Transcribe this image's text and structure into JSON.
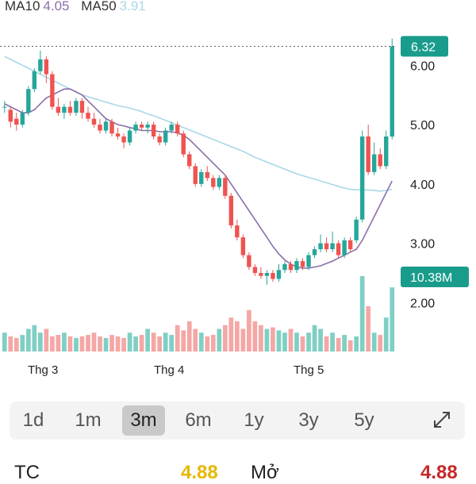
{
  "legend": {
    "ma10_label": "MA10",
    "ma10_value": "4.05",
    "ma50_label": "MA50",
    "ma50_value": "3.91",
    "ma10_color": "#8b6fa8",
    "ma50_color": "#a9d8e6"
  },
  "price_tag": "6.32",
  "volume_tag": "10.38M",
  "y_ticks": [
    "6.00",
    "5.00",
    "4.00",
    "3.00",
    "2.00"
  ],
  "x_labels": [
    "Thg 3",
    "Thg 4",
    "Thg 5"
  ],
  "tabs": [
    "1d",
    "1m",
    "3m",
    "6m",
    "1y",
    "3y",
    "5y"
  ],
  "active_tab": "3m",
  "stats": {
    "tc_label": "TC",
    "tc_value": "4.88",
    "open_label": "Mở",
    "open_value": "4.88"
  },
  "colors": {
    "up": "#26a69a",
    "down": "#ef5350",
    "up_vol": "#7fcfc4",
    "down_vol": "#f4a7a5",
    "tag": "#1a9c8c"
  },
  "chart_data": {
    "type": "candlestick",
    "ylim": [
      1.35,
      6.9
    ],
    "y_ticks": [
      6.0,
      5.0,
      4.0,
      3.0,
      2.0
    ],
    "last_price": 6.32,
    "last_volume": "10.38M",
    "x_labels": [
      {
        "label": "Thg 3",
        "index": 8
      },
      {
        "label": "Thg 4",
        "index": 30
      },
      {
        "label": "Thg 5",
        "index": 55
      }
    ],
    "candles": [
      [
        5.3,
        5.3,
        5.4,
        5.2,
        "up"
      ],
      [
        5.25,
        5.05,
        5.3,
        4.95,
        "down"
      ],
      [
        5.1,
        5.0,
        5.2,
        4.9,
        "down"
      ],
      [
        5.0,
        5.2,
        5.25,
        4.95,
        "up"
      ],
      [
        5.2,
        5.6,
        5.65,
        5.15,
        "up"
      ],
      [
        5.6,
        5.9,
        5.95,
        5.55,
        "up"
      ],
      [
        5.9,
        6.1,
        6.25,
        5.85,
        "up"
      ],
      [
        6.1,
        5.85,
        6.15,
        5.7,
        "down"
      ],
      [
        5.85,
        5.3,
        5.9,
        5.25,
        "down"
      ],
      [
        5.3,
        5.2,
        5.45,
        5.15,
        "down"
      ],
      [
        5.2,
        5.3,
        5.35,
        5.1,
        "up"
      ],
      [
        5.3,
        5.2,
        5.4,
        5.15,
        "down"
      ],
      [
        5.2,
        5.4,
        5.45,
        5.15,
        "up"
      ],
      [
        5.4,
        5.2,
        5.45,
        5.1,
        "down"
      ],
      [
        5.2,
        5.1,
        5.3,
        5.05,
        "down"
      ],
      [
        5.1,
        5.0,
        5.2,
        4.95,
        "down"
      ],
      [
        5.0,
        4.9,
        5.1,
        4.85,
        "down"
      ],
      [
        4.9,
        5.05,
        5.1,
        4.85,
        "up"
      ],
      [
        5.05,
        4.85,
        5.1,
        4.8,
        "down"
      ],
      [
        4.85,
        4.8,
        4.95,
        4.75,
        "down"
      ],
      [
        4.8,
        4.7,
        4.85,
        4.6,
        "down"
      ],
      [
        4.7,
        4.9,
        4.95,
        4.65,
        "up"
      ],
      [
        4.9,
        5.0,
        5.05,
        4.85,
        "up"
      ],
      [
        5.0,
        4.95,
        5.05,
        4.9,
        "down"
      ],
      [
        4.95,
        5.0,
        5.05,
        4.85,
        "up"
      ],
      [
        5.0,
        4.8,
        5.05,
        4.75,
        "down"
      ],
      [
        4.8,
        4.7,
        4.85,
        4.65,
        "down"
      ],
      [
        4.7,
        4.9,
        4.95,
        4.65,
        "up"
      ],
      [
        4.9,
        5.0,
        5.05,
        4.85,
        "up"
      ],
      [
        5.0,
        4.85,
        5.05,
        4.8,
        "down"
      ],
      [
        4.85,
        4.5,
        4.9,
        4.45,
        "down"
      ],
      [
        4.5,
        4.3,
        4.55,
        4.25,
        "down"
      ],
      [
        4.3,
        4.0,
        4.35,
        3.95,
        "down"
      ],
      [
        4.0,
        4.2,
        4.25,
        3.95,
        "up"
      ],
      [
        4.2,
        4.1,
        4.3,
        4.05,
        "down"
      ],
      [
        4.1,
        3.95,
        4.15,
        3.9,
        "down"
      ],
      [
        3.95,
        4.1,
        4.15,
        3.9,
        "up"
      ],
      [
        4.1,
        3.8,
        4.15,
        3.75,
        "down"
      ],
      [
        3.8,
        3.3,
        3.85,
        3.25,
        "down"
      ],
      [
        3.3,
        3.1,
        3.4,
        3.05,
        "down"
      ],
      [
        3.1,
        2.8,
        3.15,
        2.75,
        "down"
      ],
      [
        2.8,
        2.6,
        2.85,
        2.55,
        "down"
      ],
      [
        2.6,
        2.5,
        2.65,
        2.45,
        "down"
      ],
      [
        2.5,
        2.45,
        2.6,
        2.4,
        "down"
      ],
      [
        2.45,
        2.5,
        2.55,
        2.3,
        "up"
      ],
      [
        2.5,
        2.4,
        2.55,
        2.35,
        "down"
      ],
      [
        2.4,
        2.55,
        2.65,
        2.35,
        "up"
      ],
      [
        2.55,
        2.65,
        2.7,
        2.5,
        "up"
      ],
      [
        2.65,
        2.55,
        2.7,
        2.5,
        "down"
      ],
      [
        2.55,
        2.7,
        2.75,
        2.5,
        "up"
      ],
      [
        2.7,
        2.6,
        2.75,
        2.55,
        "down"
      ],
      [
        2.6,
        2.8,
        2.85,
        2.55,
        "up"
      ],
      [
        2.8,
        2.9,
        2.95,
        2.75,
        "up"
      ],
      [
        2.9,
        3.0,
        3.15,
        2.85,
        "up"
      ],
      [
        3.0,
        2.9,
        3.1,
        2.85,
        "down"
      ],
      [
        2.9,
        3.0,
        3.2,
        2.85,
        "up"
      ],
      [
        3.0,
        2.8,
        3.05,
        2.75,
        "down"
      ],
      [
        2.8,
        3.05,
        3.1,
        2.75,
        "up"
      ],
      [
        3.05,
        2.9,
        3.1,
        2.85,
        "down"
      ],
      [
        3.05,
        3.4,
        3.45,
        3.0,
        "up"
      ],
      [
        3.4,
        4.8,
        4.9,
        3.35,
        "up"
      ],
      [
        4.8,
        4.2,
        5.0,
        4.15,
        "down"
      ],
      [
        4.2,
        4.5,
        4.7,
        4.15,
        "up"
      ],
      [
        4.5,
        4.3,
        4.6,
        4.25,
        "down"
      ],
      [
        4.3,
        4.8,
        4.9,
        4.25,
        "up"
      ],
      [
        4.8,
        6.32,
        6.45,
        4.75,
        "up"
      ]
    ],
    "volume_rel": [
      0.25,
      0.2,
      0.18,
      0.22,
      0.3,
      0.35,
      0.25,
      0.3,
      0.2,
      0.22,
      0.25,
      0.2,
      0.18,
      0.2,
      0.22,
      0.25,
      0.2,
      0.18,
      0.22,
      0.2,
      0.18,
      0.25,
      0.2,
      0.22,
      0.3,
      0.25,
      0.2,
      0.25,
      0.22,
      0.35,
      0.28,
      0.4,
      0.3,
      0.25,
      0.2,
      0.22,
      0.3,
      0.35,
      0.45,
      0.4,
      0.3,
      0.55,
      0.4,
      0.35,
      0.3,
      0.32,
      0.28,
      0.25,
      0.3,
      0.25,
      0.2,
      0.25,
      0.35,
      0.3,
      0.2,
      0.25,
      0.18,
      0.22,
      0.15,
      0.2,
      1.0,
      0.6,
      0.25,
      0.22,
      0.45,
      0.85
    ],
    "ma10": [
      5.35,
      5.3,
      5.25,
      5.2,
      5.2,
      5.25,
      5.35,
      5.45,
      5.5,
      5.55,
      5.6,
      5.6,
      5.55,
      5.5,
      5.4,
      5.3,
      5.2,
      5.1,
      5.05,
      5.0,
      4.98,
      4.95,
      4.93,
      4.9,
      4.9,
      4.9,
      4.88,
      4.88,
      4.88,
      4.86,
      4.82,
      4.75,
      4.65,
      4.55,
      4.45,
      4.35,
      4.25,
      4.15,
      4.0,
      3.85,
      3.7,
      3.55,
      3.4,
      3.25,
      3.1,
      2.95,
      2.82,
      2.72,
      2.65,
      2.6,
      2.58,
      2.58,
      2.6,
      2.62,
      2.66,
      2.7,
      2.75,
      2.8,
      2.85,
      2.9,
      3.05,
      3.25,
      3.45,
      3.65,
      3.85,
      4.05
    ],
    "ma50": [
      6.15,
      6.1,
      6.05,
      6.0,
      5.95,
      5.9,
      5.85,
      5.8,
      5.75,
      5.7,
      5.65,
      5.6,
      5.55,
      5.5,
      5.47,
      5.44,
      5.41,
      5.38,
      5.35,
      5.32,
      5.3,
      5.28,
      5.25,
      5.22,
      5.18,
      5.15,
      5.11,
      5.07,
      5.03,
      4.99,
      4.95,
      4.91,
      4.87,
      4.83,
      4.79,
      4.75,
      4.71,
      4.67,
      4.63,
      4.59,
      4.55,
      4.5,
      4.45,
      4.41,
      4.37,
      4.33,
      4.29,
      4.25,
      4.21,
      4.17,
      4.14,
      4.11,
      4.08,
      4.05,
      4.02,
      3.99,
      3.96,
      3.93,
      3.91,
      3.9,
      3.9,
      3.9,
      3.89,
      3.88,
      3.89,
      3.91
    ]
  }
}
